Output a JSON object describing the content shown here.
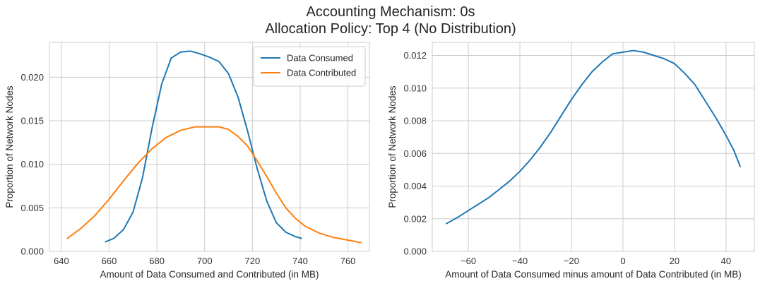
{
  "figure": {
    "title_line1": "Accounting Mechanism: 0s",
    "title_line2": "Allocation Policy: Top 4 (No Distribution)"
  },
  "chart_data": [
    {
      "type": "line",
      "xlabel": "Amount of Data Consumed and Contributed (in MB)",
      "ylabel": "Proportion of Network Nodes",
      "xlim": [
        635,
        769
      ],
      "ylim": [
        0,
        0.024
      ],
      "xticks": [
        640,
        660,
        680,
        700,
        720,
        740,
        760
      ],
      "yticks": [
        0.0,
        0.005,
        0.01,
        0.015,
        0.02
      ],
      "ytick_labels": [
        "0.000",
        "0.005",
        "0.010",
        "0.015",
        "0.020"
      ],
      "grid": true,
      "legend_position": "upper right",
      "series": [
        {
          "name": "Data Consumed",
          "color": "#1f77b4",
          "points": [
            [
              658.5,
              0.0011
            ],
            [
              662,
              0.0015
            ],
            [
              666,
              0.0025
            ],
            [
              670,
              0.0045
            ],
            [
              674,
              0.0085
            ],
            [
              678,
              0.0142
            ],
            [
              682,
              0.0192
            ],
            [
              686,
              0.0222
            ],
            [
              690,
              0.0229
            ],
            [
              694,
              0.023
            ],
            [
              698,
              0.0227
            ],
            [
              702,
              0.0223
            ],
            [
              706,
              0.0218
            ],
            [
              710,
              0.0204
            ],
            [
              714,
              0.0177
            ],
            [
              718,
              0.0138
            ],
            [
              722,
              0.0095
            ],
            [
              726,
              0.0058
            ],
            [
              730,
              0.0033
            ],
            [
              734,
              0.0022
            ],
            [
              738,
              0.0017
            ],
            [
              740.5,
              0.0015
            ]
          ]
        },
        {
          "name": "Data Contributed",
          "color": "#ff7f0e",
          "points": [
            [
              642.5,
              0.0015
            ],
            [
              648,
              0.0026
            ],
            [
              654,
              0.0041
            ],
            [
              660,
              0.006
            ],
            [
              666,
              0.0081
            ],
            [
              672,
              0.0101
            ],
            [
              678,
              0.0118
            ],
            [
              684,
              0.0131
            ],
            [
              690,
              0.0139
            ],
            [
              696,
              0.0143
            ],
            [
              702,
              0.0143
            ],
            [
              706,
              0.0143
            ],
            [
              710,
              0.014
            ],
            [
              714,
              0.0132
            ],
            [
              718,
              0.0121
            ],
            [
              722,
              0.0104
            ],
            [
              726,
              0.0086
            ],
            [
              730,
              0.0067
            ],
            [
              734,
              0.005
            ],
            [
              738,
              0.0038
            ],
            [
              742,
              0.0029
            ],
            [
              748,
              0.0021
            ],
            [
              754,
              0.0016
            ],
            [
              760,
              0.0013
            ],
            [
              765.5,
              0.001
            ]
          ]
        }
      ]
    },
    {
      "type": "line",
      "xlabel": "Amount of Data Consumed minus amount of Data Contributed (in MB)",
      "ylabel": "Proportion of Network Nodes",
      "xlim": [
        -74,
        51
      ],
      "ylim": [
        0,
        0.0128
      ],
      "xticks": [
        -60,
        -40,
        -20,
        0,
        20,
        40
      ],
      "yticks": [
        0.0,
        0.002,
        0.004,
        0.006,
        0.008,
        0.01,
        0.012
      ],
      "ytick_labels": [
        "0.000",
        "0.002",
        "0.004",
        "0.006",
        "0.008",
        "0.010",
        "0.012"
      ],
      "grid": true,
      "series": [
        {
          "color": "#1f77b4",
          "points": [
            [
              -68.5,
              0.0017
            ],
            [
              -64,
              0.0021
            ],
            [
              -60,
              0.0025
            ],
            [
              -56,
              0.0029
            ],
            [
              -52,
              0.0033
            ],
            [
              -48,
              0.0038
            ],
            [
              -44,
              0.0043
            ],
            [
              -40,
              0.0049
            ],
            [
              -36,
              0.0056
            ],
            [
              -32,
              0.0064
            ],
            [
              -28,
              0.0073
            ],
            [
              -24,
              0.0083
            ],
            [
              -20,
              0.0093
            ],
            [
              -16,
              0.0102
            ],
            [
              -12,
              0.011
            ],
            [
              -8,
              0.0116
            ],
            [
              -4,
              0.0121
            ],
            [
              0,
              0.0122
            ],
            [
              4,
              0.0123
            ],
            [
              8,
              0.0122
            ],
            [
              12,
              0.012
            ],
            [
              16,
              0.0118
            ],
            [
              20,
              0.0115
            ],
            [
              24,
              0.0109
            ],
            [
              28,
              0.0102
            ],
            [
              32,
              0.0092
            ],
            [
              36,
              0.0082
            ],
            [
              40,
              0.0071
            ],
            [
              43,
              0.0062
            ],
            [
              45.5,
              0.0052
            ]
          ]
        }
      ]
    }
  ]
}
